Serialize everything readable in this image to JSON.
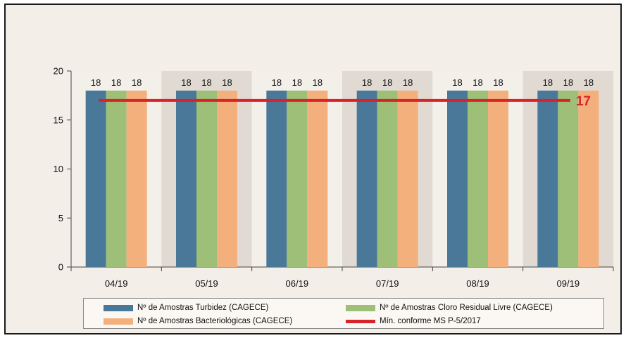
{
  "chart_data": {
    "type": "bar",
    "categories": [
      "04/19",
      "05/19",
      "06/19",
      "07/19",
      "08/19",
      "09/19"
    ],
    "series": [
      {
        "name": "Nº de Amostras Turbidez (CAGECE)",
        "values": [
          18,
          18,
          18,
          18,
          18,
          18
        ],
        "color": "#4a7898"
      },
      {
        "name": "Nº de Amostras Cloro Residual Livre (CAGECE)",
        "values": [
          18,
          18,
          18,
          18,
          18,
          18
        ],
        "color": "#9dbf78"
      },
      {
        "name": "Nº de Amostras Bacteriológicas (CAGECE)",
        "values": [
          18,
          18,
          18,
          18,
          18,
          18
        ],
        "color": "#f4b07c"
      }
    ],
    "reference_line": {
      "name": "Mín. conforme MS  P-5/2017",
      "value": 17,
      "label": "17",
      "color": "#d8232a"
    },
    "ylim": [
      0,
      20
    ],
    "yticks": [
      0,
      5,
      10,
      15,
      20
    ],
    "data_labels": true,
    "legend_position": "bottom",
    "colors": {
      "band_light": "#f3efe9",
      "band_dark": "#e1dad2",
      "frame_bg": "#f3eee8"
    }
  }
}
